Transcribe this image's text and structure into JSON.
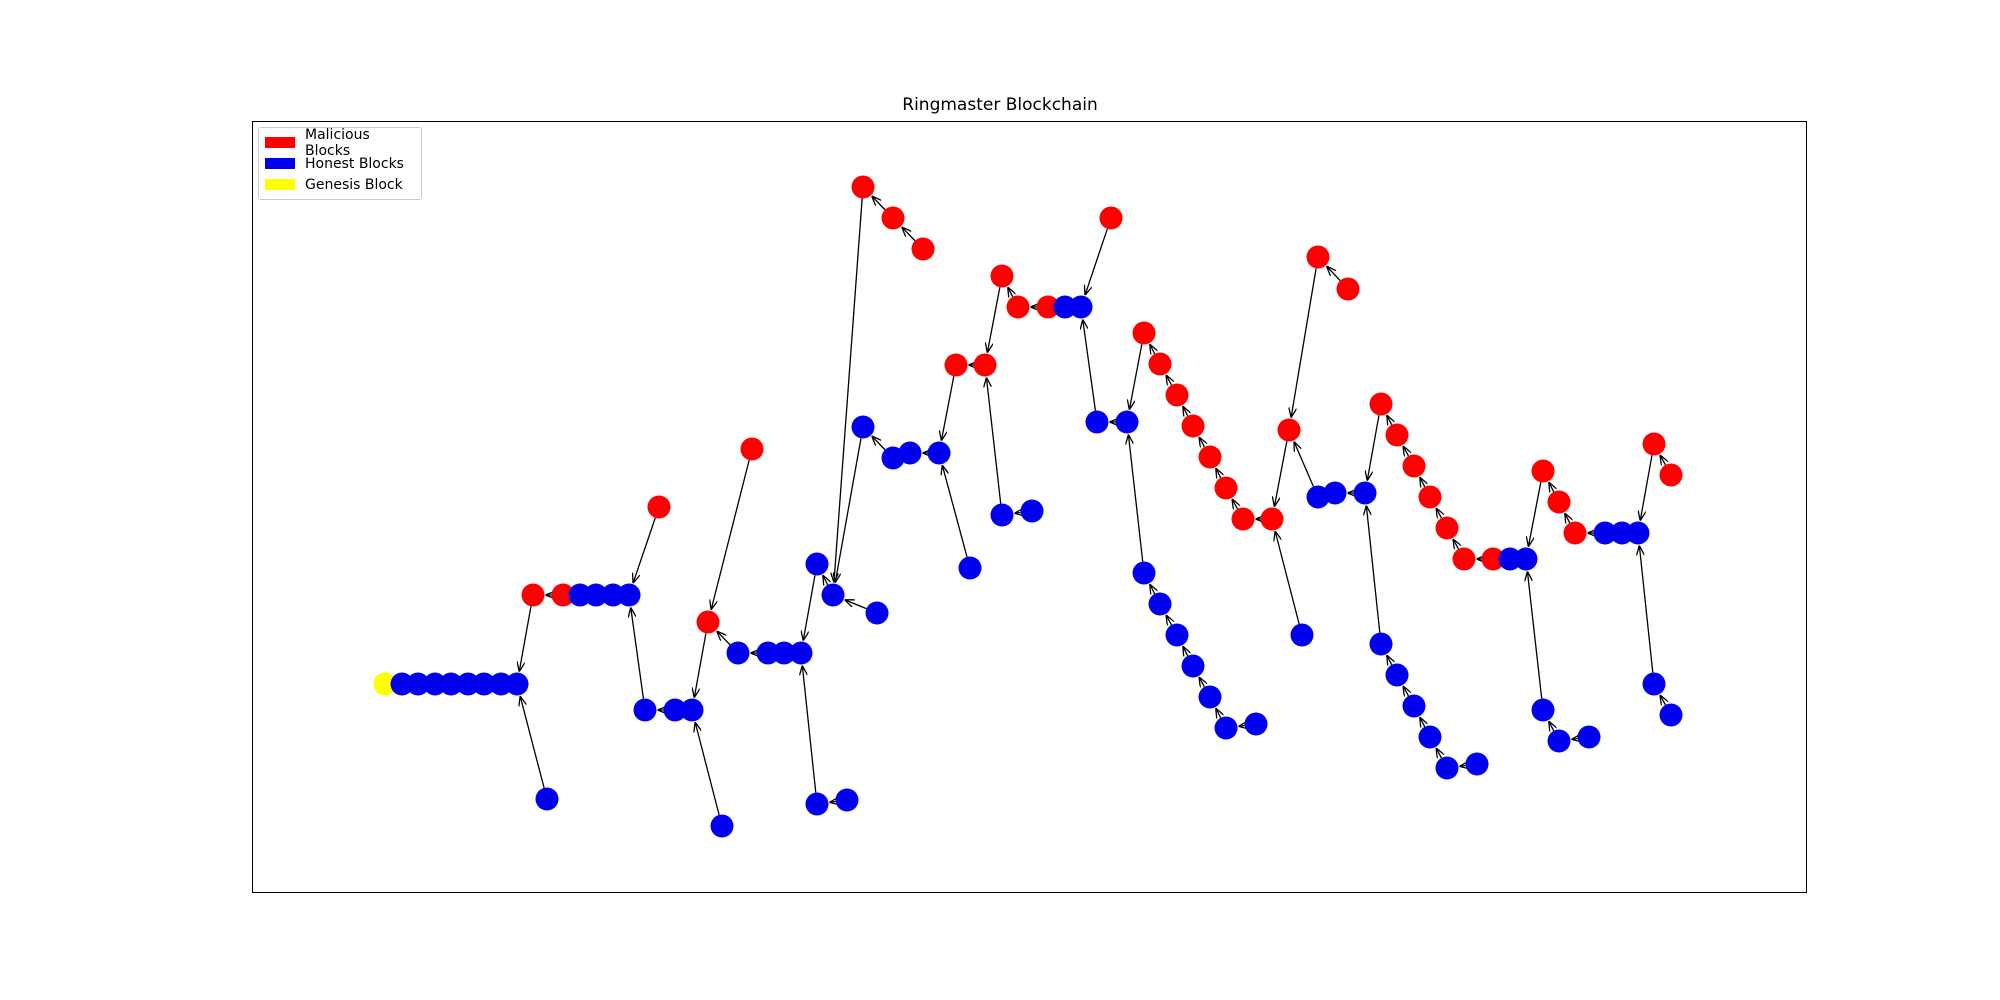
{
  "title": "Ringmaster Blockchain",
  "colors": {
    "malicious": "#ff0000",
    "honest": "#0000ee",
    "genesis": "#ffff00",
    "edge": "#000000"
  },
  "legend": [
    {
      "label": "Malicious Blocks",
      "color": "#ff0000"
    },
    {
      "label": "Honest Blocks",
      "color": "#0000ee"
    },
    {
      "label": "Genesis Block",
      "color": "#ffff00"
    }
  ],
  "blocks": [
    [
      "g",
      "genesis",
      385,
      684
    ],
    [
      "h1",
      "honest",
      402,
      684
    ],
    [
      "h2",
      "honest",
      418,
      684
    ],
    [
      "h3",
      "honest",
      435,
      684
    ],
    [
      "h4",
      "honest",
      451,
      684
    ],
    [
      "h5",
      "honest",
      468,
      684
    ],
    [
      "h6",
      "honest",
      484,
      684
    ],
    [
      "h7",
      "honest",
      501,
      684
    ],
    [
      "h8",
      "honest",
      517,
      684
    ],
    [
      "b1",
      "honest",
      547,
      799
    ],
    [
      "m1",
      "malicious",
      533,
      595
    ],
    [
      "m2",
      "malicious",
      563,
      595
    ],
    [
      "h9",
      "honest",
      580,
      595
    ],
    [
      "h10",
      "honest",
      596,
      595
    ],
    [
      "h11",
      "honest",
      613,
      595
    ],
    [
      "h12",
      "honest",
      629,
      595
    ],
    [
      "m3",
      "malicious",
      659,
      507
    ],
    [
      "h13",
      "honest",
      645,
      710
    ],
    [
      "h14",
      "honest",
      675,
      710
    ],
    [
      "h15",
      "honest",
      692,
      710
    ],
    [
      "b2",
      "honest",
      722,
      826
    ],
    [
      "m4",
      "malicious",
      708,
      622
    ],
    [
      "m5",
      "malicious",
      752,
      449
    ],
    [
      "h16",
      "honest",
      738,
      653
    ],
    [
      "h17",
      "honest",
      768,
      653
    ],
    [
      "h18",
      "honest",
      784,
      653
    ],
    [
      "h19",
      "honest",
      801,
      653
    ],
    [
      "b3",
      "honest",
      817,
      804
    ],
    [
      "b4",
      "honest",
      847,
      800
    ],
    [
      "h20",
      "honest",
      817,
      564
    ],
    [
      "h21",
      "honest",
      833,
      595
    ],
    [
      "b5",
      "honest",
      877,
      613
    ],
    [
      "m6",
      "malicious",
      863,
      187
    ],
    [
      "m7",
      "malicious",
      893,
      218
    ],
    [
      "m8",
      "malicious",
      923,
      249
    ],
    [
      "h22",
      "honest",
      863,
      427
    ],
    [
      "h23",
      "honest",
      893,
      458
    ],
    [
      "h24",
      "honest",
      910,
      453
    ],
    [
      "h25",
      "honest",
      939,
      453
    ],
    [
      "b6",
      "honest",
      970,
      568
    ],
    [
      "m9",
      "malicious",
      956,
      365
    ],
    [
      "m10",
      "malicious",
      985,
      365
    ],
    [
      "b7",
      "honest",
      1002,
      515
    ],
    [
      "b8",
      "honest",
      1032,
      511
    ],
    [
      "m11",
      "malicious",
      1002,
      276
    ],
    [
      "m12",
      "malicious",
      1018,
      307
    ],
    [
      "m13",
      "malicious",
      1048,
      307
    ],
    [
      "h26",
      "honest",
      1065,
      307
    ],
    [
      "h27",
      "honest",
      1081,
      307
    ],
    [
      "m14",
      "malicious",
      1111,
      218
    ],
    [
      "h28",
      "honest",
      1097,
      422
    ],
    [
      "h29",
      "honest",
      1127,
      422
    ],
    [
      "m15",
      "malicious",
      1144,
      333
    ],
    [
      "m16",
      "malicious",
      1160,
      364
    ],
    [
      "m17",
      "malicious",
      1177,
      395
    ],
    [
      "m18",
      "malicious",
      1193,
      426
    ],
    [
      "m19",
      "malicious",
      1210,
      457
    ],
    [
      "m20",
      "malicious",
      1226,
      488
    ],
    [
      "m21",
      "malicious",
      1243,
      519
    ],
    [
      "m22",
      "malicious",
      1272,
      519
    ],
    [
      "b9",
      "honest",
      1144,
      573
    ],
    [
      "b10",
      "honest",
      1160,
      604
    ],
    [
      "b11",
      "honest",
      1177,
      635
    ],
    [
      "b12",
      "honest",
      1193,
      666
    ],
    [
      "b13",
      "honest",
      1210,
      697
    ],
    [
      "b14",
      "honest",
      1226,
      728
    ],
    [
      "b15",
      "honest",
      1256,
      724
    ],
    [
      "b16",
      "honest",
      1302,
      635
    ],
    [
      "m23",
      "malicious",
      1289,
      430
    ],
    [
      "m24",
      "malicious",
      1318,
      257
    ],
    [
      "m25",
      "malicious",
      1348,
      289
    ],
    [
      "h30",
      "honest",
      1318,
      497
    ],
    [
      "h31",
      "honest",
      1335,
      493
    ],
    [
      "h32",
      "honest",
      1365,
      493
    ],
    [
      "m26",
      "malicious",
      1381,
      404
    ],
    [
      "m27",
      "malicious",
      1397,
      435
    ],
    [
      "m28",
      "malicious",
      1414,
      466
    ],
    [
      "m29",
      "malicious",
      1430,
      497
    ],
    [
      "m30",
      "malicious",
      1447,
      528
    ],
    [
      "m31",
      "malicious",
      1464,
      559
    ],
    [
      "m32",
      "malicious",
      1493,
      559
    ],
    [
      "h33",
      "honest",
      1510,
      559
    ],
    [
      "h34",
      "honest",
      1526,
      559
    ],
    [
      "b17",
      "honest",
      1381,
      644
    ],
    [
      "b18",
      "honest",
      1397,
      675
    ],
    [
      "b19",
      "honest",
      1414,
      706
    ],
    [
      "b20",
      "honest",
      1430,
      737
    ],
    [
      "b21",
      "honest",
      1447,
      768
    ],
    [
      "b22",
      "honest",
      1477,
      764
    ],
    [
      "b23",
      "honest",
      1543,
      710
    ],
    [
      "b24",
      "honest",
      1559,
      741
    ],
    [
      "b25",
      "honest",
      1589,
      737
    ],
    [
      "m33",
      "malicious",
      1543,
      471
    ],
    [
      "m34",
      "malicious",
      1559,
      502
    ],
    [
      "m35",
      "malicious",
      1575,
      533
    ],
    [
      "h35",
      "honest",
      1605,
      533
    ],
    [
      "h36",
      "honest",
      1622,
      533
    ],
    [
      "h37",
      "honest",
      1638,
      533
    ],
    [
      "b26",
      "honest",
      1654,
      684
    ],
    [
      "b27",
      "honest",
      1671,
      715
    ],
    [
      "m36",
      "malicious",
      1654,
      444
    ],
    [
      "m37",
      "malicious",
      1671,
      475
    ]
  ],
  "edges": [
    [
      "h1",
      "g"
    ],
    [
      "h2",
      "h1"
    ],
    [
      "h3",
      "h2"
    ],
    [
      "h4",
      "h3"
    ],
    [
      "h5",
      "h4"
    ],
    [
      "h6",
      "h5"
    ],
    [
      "h7",
      "h6"
    ],
    [
      "h8",
      "h7"
    ],
    [
      "b1",
      "h8"
    ],
    [
      "m1",
      "h8"
    ],
    [
      "m2",
      "m1"
    ],
    [
      "h9",
      "m2"
    ],
    [
      "h10",
      "h9"
    ],
    [
      "h11",
      "h10"
    ],
    [
      "h12",
      "h11"
    ],
    [
      "m3",
      "h12"
    ],
    [
      "h13",
      "h12"
    ],
    [
      "h14",
      "h13"
    ],
    [
      "h15",
      "h14"
    ],
    [
      "b2",
      "h15"
    ],
    [
      "m4",
      "h15"
    ],
    [
      "m5",
      "m4"
    ],
    [
      "h16",
      "m4"
    ],
    [
      "h17",
      "h16"
    ],
    [
      "h18",
      "h17"
    ],
    [
      "h19",
      "h18"
    ],
    [
      "b3",
      "h19"
    ],
    [
      "b4",
      "b3"
    ],
    [
      "h20",
      "h19"
    ],
    [
      "h21",
      "h20"
    ],
    [
      "b5",
      "h21"
    ],
    [
      "m6",
      "h21"
    ],
    [
      "m7",
      "m6"
    ],
    [
      "m8",
      "m7"
    ],
    [
      "h22",
      "h21"
    ],
    [
      "h23",
      "h22"
    ],
    [
      "h24",
      "h23"
    ],
    [
      "h25",
      "h24"
    ],
    [
      "b6",
      "h25"
    ],
    [
      "m9",
      "h25"
    ],
    [
      "m10",
      "m9"
    ],
    [
      "b7",
      "m10"
    ],
    [
      "b8",
      "b7"
    ],
    [
      "m11",
      "m10"
    ],
    [
      "m12",
      "m11"
    ],
    [
      "m13",
      "m12"
    ],
    [
      "h26",
      "m13"
    ],
    [
      "h27",
      "h26"
    ],
    [
      "m14",
      "h27"
    ],
    [
      "h28",
      "h27"
    ],
    [
      "h29",
      "h28"
    ],
    [
      "m15",
      "h29"
    ],
    [
      "m16",
      "m15"
    ],
    [
      "m17",
      "m16"
    ],
    [
      "m18",
      "m17"
    ],
    [
      "m19",
      "m18"
    ],
    [
      "m20",
      "m19"
    ],
    [
      "m21",
      "m20"
    ],
    [
      "m22",
      "m21"
    ],
    [
      "b9",
      "h29"
    ],
    [
      "b10",
      "b9"
    ],
    [
      "b11",
      "b10"
    ],
    [
      "b12",
      "b11"
    ],
    [
      "b13",
      "b12"
    ],
    [
      "b14",
      "b13"
    ],
    [
      "b15",
      "b14"
    ],
    [
      "b16",
      "m22"
    ],
    [
      "m23",
      "m22"
    ],
    [
      "m24",
      "m23"
    ],
    [
      "m25",
      "m24"
    ],
    [
      "h30",
      "m23"
    ],
    [
      "h31",
      "h30"
    ],
    [
      "h32",
      "h31"
    ],
    [
      "m26",
      "h32"
    ],
    [
      "m27",
      "m26"
    ],
    [
      "m28",
      "m27"
    ],
    [
      "m29",
      "m28"
    ],
    [
      "m30",
      "m29"
    ],
    [
      "m31",
      "m30"
    ],
    [
      "m32",
      "m31"
    ],
    [
      "h33",
      "m32"
    ],
    [
      "h34",
      "h33"
    ],
    [
      "b17",
      "h32"
    ],
    [
      "b18",
      "b17"
    ],
    [
      "b19",
      "b18"
    ],
    [
      "b20",
      "b19"
    ],
    [
      "b21",
      "b20"
    ],
    [
      "b22",
      "b21"
    ],
    [
      "b23",
      "h34"
    ],
    [
      "b24",
      "b23"
    ],
    [
      "b25",
      "b24"
    ],
    [
      "m33",
      "h34"
    ],
    [
      "m34",
      "m33"
    ],
    [
      "m35",
      "m34"
    ],
    [
      "h35",
      "m35"
    ],
    [
      "h36",
      "h35"
    ],
    [
      "h37",
      "h36"
    ],
    [
      "b26",
      "h37"
    ],
    [
      "b27",
      "b26"
    ],
    [
      "m36",
      "h37"
    ],
    [
      "m37",
      "m36"
    ]
  ]
}
